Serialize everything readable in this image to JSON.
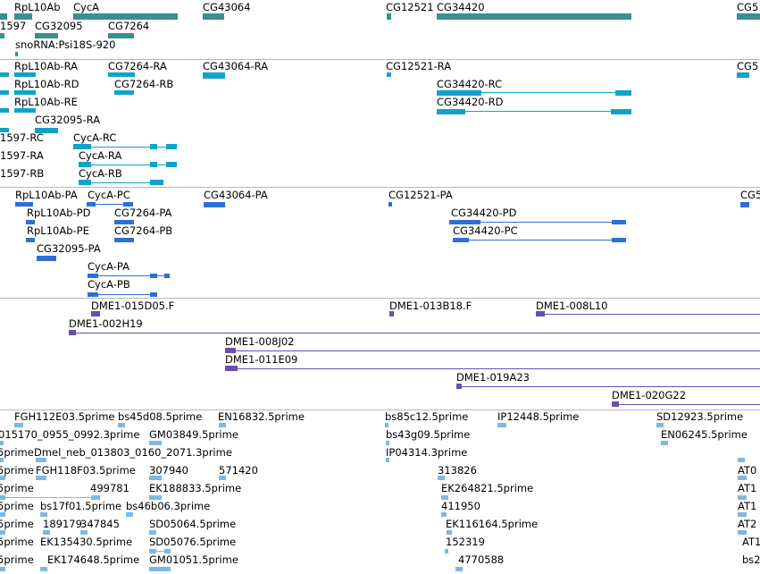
{
  "colors": {
    "gene": "#3a8f8f",
    "transcript": "#12a2c8",
    "protein": "#2d6fd6",
    "clone": "#6a4fb0",
    "est": "#7fb8e0",
    "divider": "#b8b8b8"
  },
  "tracks": {
    "gene": {
      "labels": [
        "RpL10Ab",
        "CycA",
        "CG43064",
        "CG12521",
        "CG34420",
        "CG5",
        "1597",
        "CG32095",
        "CG7264",
        "snoRNA:Psi18S-920"
      ]
    },
    "transcript": {
      "labels": [
        "RpL10Ab-RA",
        "CG7264-RA",
        "CG43064-RA",
        "CG12521-RA",
        "CG5",
        "RpL10Ab-RD",
        "CG7264-RB",
        "CG34420-RC",
        "RpL10Ab-RE",
        "CG34420-RD",
        "CG32095-RA",
        "1597-RC",
        "CycA-RC",
        "1597-RA",
        "CycA-RA",
        "1597-RB",
        "CycA-RB"
      ]
    },
    "protein": {
      "labels": [
        "RpL10Ab-PA",
        "CycA-PC",
        "CG43064-PA",
        "CG12521-PA",
        "CG5",
        "RpL10Ab-PD",
        "CG7264-PA",
        "CG34420-PD",
        "RpL10Ab-PE",
        "CG7264-PB",
        "CG34420-PC",
        "CG32095-PA",
        "CycA-PA",
        "CycA-PB"
      ]
    },
    "clone": {
      "labels": [
        "DME1-015D05.F",
        "DME1-013B18.F",
        "DME1-008L10",
        "DME1-002H19",
        "DME1-008J02",
        "DME1-011E09",
        "DME1-019A23",
        "DME1-020G22"
      ]
    },
    "est": {
      "labels": [
        "FGH112E03.5prime",
        "bs45d08.5prime",
        "EN16832.5prime",
        "bs85c12.5prime",
        "IP12448.5prime",
        "SD12923.5prime",
        "015170_0955_0992.3prime",
        "GM03849.5prime",
        "bs43g09.5prime",
        "EN06245.5prime",
        "5prime",
        "Dmel_neb_013803_0160_2071.3prime",
        "IP04314.3prime",
        "5prime",
        "FGH118F03.5prime",
        "307940",
        "571420",
        "313826",
        "AT0",
        "5prime",
        "499781",
        "EK188833.5prime",
        "EK264821.5prime",
        "AT1",
        "5prime",
        "bs17f01.5prime",
        "bs46b06.3prime",
        "411950",
        "AT1",
        "5prime",
        "189179",
        "347845",
        "SD05064.5prime",
        "EK116164.5prime",
        "AT2",
        "5prime",
        "EK135430.5prime",
        "SD05076.5prime",
        "152319",
        "AT1",
        "5prime",
        "EK174648.5prime",
        "GM01051.5prime",
        "4770588",
        "bs2"
      ]
    }
  }
}
